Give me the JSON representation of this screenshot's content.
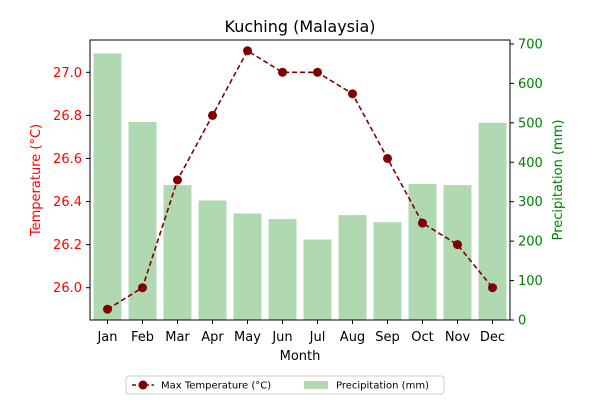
{
  "chart_data": {
    "type": "bar+line",
    "title": "Kuching (Malaysia)",
    "xlabel": "Month",
    "categories": [
      "Jan",
      "Feb",
      "Mar",
      "Apr",
      "May",
      "Jun",
      "Jul",
      "Aug",
      "Sep",
      "Oct",
      "Nov",
      "Dec"
    ],
    "y_left": {
      "label": "Temperature (°C)",
      "color": "#ff0000",
      "lim": [
        25.85,
        27.15
      ],
      "ticks": [
        "26.0",
        "26.2",
        "26.4",
        "26.6",
        "26.8",
        "27.0"
      ]
    },
    "y_right": {
      "label": "Precipitation (mm)",
      "color": "#008000",
      "lim": [
        0,
        710
      ],
      "ticks": [
        "0",
        "100",
        "200",
        "300",
        "400",
        "500",
        "600",
        "700"
      ]
    },
    "series": [
      {
        "name": "Max Temperature (°C)",
        "type": "line",
        "axis": "left",
        "color": "#800000",
        "values": [
          25.9,
          26.0,
          26.5,
          26.8,
          27.1,
          27.0,
          27.0,
          26.9,
          26.6,
          26.3,
          26.2,
          26.0
        ]
      },
      {
        "name": "Precipitation (mm)",
        "type": "bar",
        "axis": "right",
        "color": "#b0d9b1",
        "values": [
          676,
          502,
          342,
          303,
          270,
          256,
          204,
          266,
          248,
          345,
          342,
          500
        ]
      }
    ],
    "grid": false,
    "legend_position": "bottom-center"
  }
}
